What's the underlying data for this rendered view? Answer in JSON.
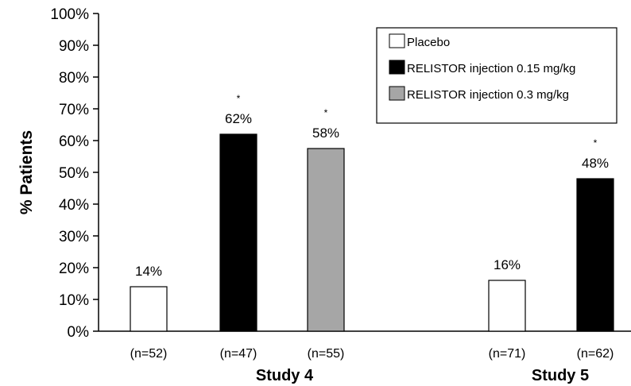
{
  "chart_data": {
    "type": "bar",
    "ylabel": "% Patients",
    "ylim": [
      0,
      100
    ],
    "yticks": [
      "0%",
      "10%",
      "20%",
      "30%",
      "40%",
      "50%",
      "60%",
      "70%",
      "80%",
      "90%",
      "100%"
    ],
    "groups": [
      "Study 4",
      "Study 5"
    ],
    "series": [
      {
        "name": "Placebo",
        "color": "#ffffff"
      },
      {
        "name": "RELISTOR injection 0.15 mg/kg",
        "color": "#000000"
      },
      {
        "name": "RELISTOR injection 0.3 mg/kg",
        "color": "#a6a6a6"
      }
    ],
    "bars": [
      {
        "group": "Study 4",
        "series": 0,
        "value": 14,
        "label": "14%",
        "n": "(n=52)",
        "star": ""
      },
      {
        "group": "Study 4",
        "series": 1,
        "value": 62,
        "label": "62%",
        "n": "(n=47)",
        "star": "*"
      },
      {
        "group": "Study 4",
        "series": 2,
        "value": 57.5,
        "label": "58%",
        "n": "(n=55)",
        "star": "*"
      },
      {
        "group": "Study 5",
        "series": 0,
        "value": 16,
        "label": "16%",
        "n": "(n=71)",
        "star": ""
      },
      {
        "group": "Study 5",
        "series": 1,
        "value": 48,
        "label": "48%",
        "n": "(n=62)",
        "star": "*"
      }
    ],
    "legend_position": "top-right"
  }
}
